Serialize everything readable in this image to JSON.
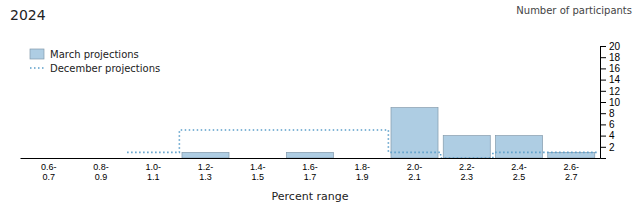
{
  "chart_data": {
    "type": "bar",
    "title": "2024",
    "subtitle": "Number of participants",
    "xlabel": "Percent range",
    "categories": [
      "0.6-\n0.7",
      "0.8-\n0.9",
      "1.0-\n1.1",
      "1.2-\n1.3",
      "1.4-\n1.5",
      "1.6-\n1.7",
      "1.8-\n1.9",
      "2.0-\n2.1",
      "2.2-\n2.3",
      "2.4-\n2.5",
      "2.6-\n2.7"
    ],
    "series": [
      {
        "name": "March projections",
        "type": "bar",
        "color": "#aecde3",
        "values": [
          0,
          0,
          0,
          1,
          0,
          1,
          0,
          9,
          4,
          4,
          1
        ]
      },
      {
        "name": "December projections",
        "type": "line",
        "line_style": "dotted",
        "color": "#5b9ec9",
        "values": [
          null,
          null,
          1,
          5,
          5,
          5,
          5,
          1,
          0,
          1,
          1
        ]
      }
    ],
    "ylim": [
      0,
      20
    ],
    "yticks": [
      2,
      4,
      6,
      8,
      10,
      12,
      14,
      16,
      18,
      20
    ],
    "legend": "top-left"
  }
}
